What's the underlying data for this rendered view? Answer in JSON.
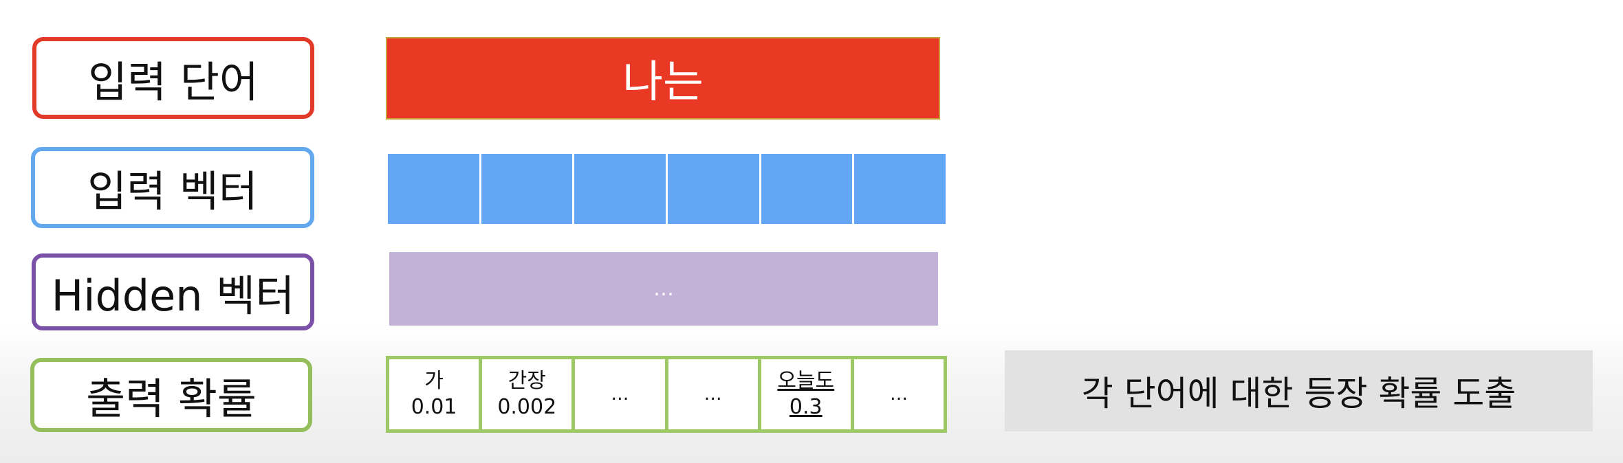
{
  "labels": {
    "input_word": "입력 단어",
    "input_vector": "입력 벡터",
    "hidden_vector": "Hidden 벡터",
    "output_prob": "출력 확률"
  },
  "input_word": "나는",
  "input_vector_cells": 6,
  "hidden_text": "…",
  "output_cells": [
    {
      "word": "가",
      "prob": "0.01",
      "highlight": false
    },
    {
      "word": "간장",
      "prob": "0.002",
      "highlight": false
    },
    {
      "word": "…",
      "prob": "",
      "highlight": false
    },
    {
      "word": "…",
      "prob": "",
      "highlight": false
    },
    {
      "word": "오늘도",
      "prob": "0.3",
      "highlight": true
    },
    {
      "word": "…",
      "prob": "",
      "highlight": false
    }
  ],
  "summary": "각 단어에 대한 등장 확률 도출",
  "colors": {
    "input_word": "#e93925",
    "input_vector": "#63a6f5",
    "hidden": "#c3b2d8",
    "output": "#9cc865"
  }
}
